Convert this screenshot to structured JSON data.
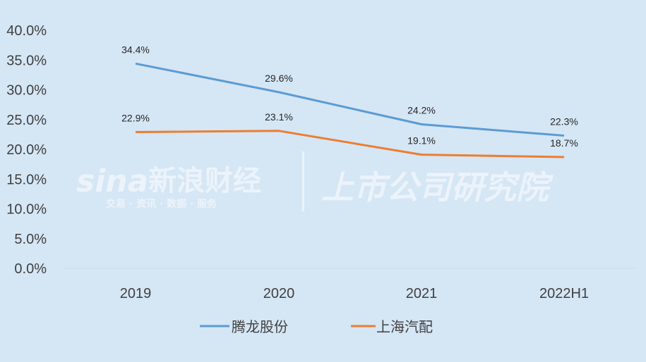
{
  "chart_data": {
    "type": "line",
    "categories": [
      "2019",
      "2020",
      "2021",
      "2022H1"
    ],
    "series": [
      {
        "name": "腾龙股份",
        "values": [
          34.4,
          29.6,
          24.2,
          22.3
        ],
        "labels": [
          "34.4%",
          "29.6%",
          "24.2%",
          "22.3%"
        ],
        "color": "#5B9BD5"
      },
      {
        "name": "上海汽配",
        "values": [
          22.9,
          23.1,
          19.1,
          18.7
        ],
        "labels": [
          "22.9%",
          "23.1%",
          "19.1%",
          "18.7%"
        ],
        "color": "#ED7D31"
      }
    ],
    "yticks": [
      "0.0%",
      "5.0%",
      "10.0%",
      "15.0%",
      "20.0%",
      "25.0%",
      "30.0%",
      "35.0%",
      "40.0%"
    ],
    "ylim": [
      0,
      40
    ],
    "grid": false,
    "legend": "bottom",
    "watermark": {
      "logo": "sina新浪财经",
      "tagline": "交易 · 资讯 · 数据 · 服务",
      "right": "上市公司研究院"
    }
  }
}
